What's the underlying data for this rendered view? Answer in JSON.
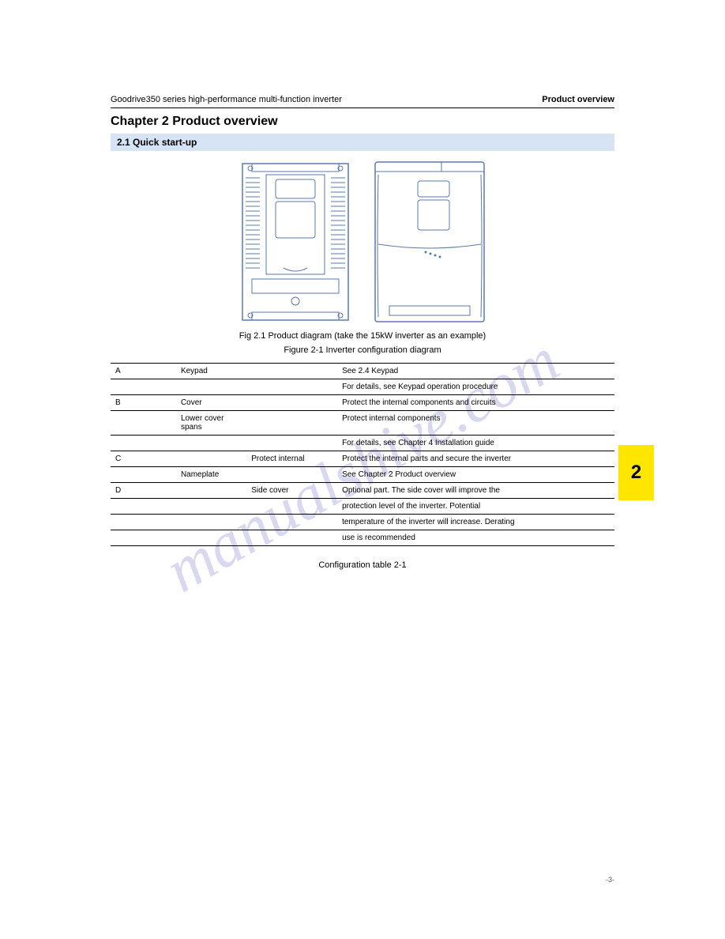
{
  "watermark": "manualshive.com",
  "header": {
    "left": "Goodrive350 series high-performance multi-function inverter",
    "right": "Product overview"
  },
  "chapterTitle": "Chapter 2 Product overview",
  "sectionTitle": "2.1 Quick start-up",
  "figure": {
    "labelLeft": "Fig 2.1 Product diagram (take the 15kW inverter as an example)",
    "caption": "Figure 2-1 Inverter configuration diagram"
  },
  "table": {
    "rows": [
      {
        "c0": "A",
        "c1": "Keypad",
        "c2": "",
        "c3": "See 2.4 Keypad"
      },
      {
        "c0": "",
        "c1": "",
        "c2": "",
        "c3": "For details, see Keypad operation procedure"
      },
      {
        "c0": "B",
        "c1": "Cover",
        "c2": "",
        "c3": "Protect the internal components and circuits"
      },
      {
        "c0": "",
        "c1": "Lower cover spans",
        "c2": "",
        "c3": "Protect internal components"
      },
      {
        "c0": "",
        "c1": "",
        "c2": "",
        "c3": "For details, see Chapter 4 Installation guide"
      },
      {
        "c0": "C",
        "c1": "",
        "c2": "Protect internal",
        "c3": "Protect the internal parts and secure the inverter"
      },
      {
        "c0": "",
        "c1": "Nameplate",
        "c2": "",
        "c3": "See Chapter 2 Product overview"
      },
      {
        "c0": "D",
        "c1": "",
        "c2": "Side cover",
        "c3": "Optional part. The side cover will improve the"
      },
      {
        "c0": "",
        "c1": "",
        "c2": "",
        "c3": "protection level of the inverter. Potential"
      },
      {
        "c0": "",
        "c1": "",
        "c2": "",
        "c3": "temperature of the inverter will increase. Derating"
      },
      {
        "c0": "",
        "c1": "",
        "c2": "",
        "c3": "use is recommended"
      }
    ],
    "caption": "Configuration table 2-1"
  },
  "chapterTab": "2",
  "footer": {
    "left": "",
    "right": "-3-"
  },
  "colors": {
    "sectionBand": "#d6e4f5",
    "tabBg": "#ffe600",
    "watermark": "rgba(100,100,200,0.25)",
    "line": "#000000"
  }
}
